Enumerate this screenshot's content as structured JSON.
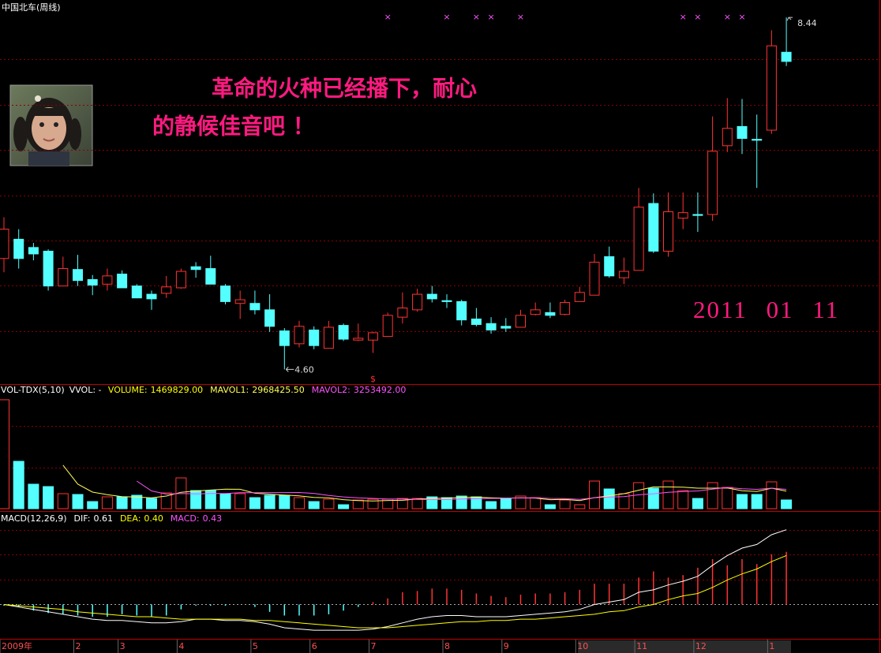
{
  "chart_data": [
    {
      "type": "candlestick",
      "title": "中国北车(周线)",
      "open": [
        5.81,
        6.02,
        5.93,
        5.89,
        5.51,
        5.69,
        5.58,
        5.53,
        5.64,
        5.51,
        5.42,
        5.43,
        5.49,
        5.72,
        5.7,
        5.51,
        5.32,
        5.32,
        5.25,
        5.02,
        4.88,
        5.03,
        4.83,
        5.08,
        4.92,
        4.92,
        4.96,
        5.17,
        5.25,
        5.42,
        5.35,
        5.34,
        5.15,
        5.1,
        5.07,
        5.06,
        5.2,
        5.22,
        5.2,
        5.34,
        5.41,
        5.83,
        5.6,
        5.68,
        6.41,
        5.89,
        6.25,
        6.29,
        6.29,
        7.04,
        7.25,
        7.11,
        7.21,
        8.06
      ],
      "high": [
        6.26,
        6.13,
        5.98,
        5.91,
        5.83,
        5.85,
        5.63,
        5.7,
        5.68,
        5.53,
        5.46,
        5.62,
        5.7,
        5.77,
        5.84,
        5.53,
        5.46,
        5.46,
        5.42,
        5.05,
        5.13,
        5.07,
        5.13,
        5.1,
        5.1,
        5.01,
        5.22,
        5.44,
        5.48,
        5.51,
        5.42,
        5.36,
        5.27,
        5.17,
        5.16,
        5.25,
        5.33,
        5.33,
        5.36,
        5.5,
        5.86,
        5.94,
        5.82,
        6.58,
        6.52,
        6.53,
        6.53,
        6.53,
        7.36,
        7.56,
        7.55,
        7.38,
        8.3,
        8.44
      ],
      "low": [
        5.66,
        5.7,
        5.79,
        5.46,
        5.51,
        5.51,
        5.41,
        5.46,
        5.49,
        5.38,
        5.25,
        5.38,
        5.48,
        5.6,
        5.53,
        5.31,
        5.15,
        5.2,
        5.01,
        4.6,
        4.84,
        4.82,
        4.83,
        4.91,
        4.91,
        4.78,
        4.96,
        5.1,
        5.23,
        5.33,
        5.27,
        5.08,
        5.07,
        4.99,
        5.01,
        5.06,
        5.19,
        5.16,
        5.19,
        5.34,
        5.41,
        5.6,
        5.53,
        5.68,
        5.87,
        5.83,
        6.13,
        6.1,
        6.22,
        6.97,
        6.95,
        6.58,
        7.17,
        7.91
      ],
      "close": [
        6.13,
        5.81,
        5.86,
        5.51,
        5.7,
        5.57,
        5.52,
        5.62,
        5.49,
        5.38,
        5.37,
        5.5,
        5.67,
        5.69,
        5.53,
        5.34,
        5.36,
        5.25,
        5.07,
        4.86,
        5.07,
        4.86,
        5.06,
        4.93,
        4.94,
        5.0,
        5.19,
        5.27,
        5.42,
        5.37,
        5.34,
        5.14,
        5.09,
        5.03,
        5.05,
        5.19,
        5.25,
        5.19,
        5.33,
        5.44,
        5.77,
        5.62,
        5.67,
        6.37,
        5.89,
        6.32,
        6.31,
        6.28,
        6.98,
        7.23,
        7.12,
        7.1,
        8.13,
        7.96
      ],
      "ylim": [
        4.44,
        8.63
      ],
      "up_color": "#ff3232",
      "down_color": "#54ffff",
      "grid": true,
      "max_marker": 8.44,
      "min_marker": {
        "value": 4.6,
        "label": "4.60"
      },
      "signal_labels": [
        null,
        null,
        null,
        null,
        null,
        null,
        null,
        null,
        null,
        null,
        null,
        null,
        null,
        null,
        null,
        null,
        null,
        null,
        null,
        null,
        null,
        null,
        null,
        null,
        null,
        null,
        "×",
        null,
        null,
        null,
        "×",
        null,
        "×",
        "×",
        null,
        "×",
        null,
        null,
        null,
        null,
        null,
        null,
        null,
        null,
        null,
        null,
        "×",
        "×",
        null,
        "×",
        "×",
        null,
        null,
        null
      ],
      "signal_color": "#ff54ff",
      "bottom_labels": [
        null,
        null,
        null,
        null,
        null,
        null,
        null,
        null,
        null,
        null,
        null,
        null,
        null,
        null,
        null,
        null,
        null,
        null,
        null,
        null,
        null,
        null,
        null,
        null,
        null,
        "$",
        null,
        null,
        null,
        null,
        null,
        null,
        null,
        null,
        null,
        null,
        null,
        null,
        null,
        null,
        null,
        null,
        null,
        null,
        null,
        null,
        null,
        null,
        null,
        null,
        null,
        null,
        null,
        null
      ],
      "annotations": [
        "革命的火种已经播下，耐心",
        "的静候佳音吧 ！",
        "2011 01 11"
      ],
      "annotation_color": "#ff1a80"
    },
    {
      "type": "bar",
      "title": "VOL-TDX(5,10)",
      "note": "VVOL: -",
      "ylim": [
        0,
        21000000
      ],
      "series": [
        {
          "name": "VOLUME:",
          "color": "#ffff00",
          "legend_value": {
            "value": 1469829,
            "label": "1469829.00"
          },
          "values": [
            18354000,
            7980000,
            4123000,
            3724000,
            2527000,
            2394000,
            1197000,
            1995000,
            1995000,
            2261000,
            1729000,
            2660000,
            5187000,
            3059000,
            3059000,
            2527000,
            2527000,
            1862000,
            2261000,
            2261000,
            1862000,
            1197000,
            1596000,
            665000,
            1463000,
            1596000,
            1596000,
            1729000,
            1729000,
            1995000,
            1862000,
            2128000,
            1995000,
            1197000,
            1729000,
            2128000,
            1862000,
            665000,
            1463000,
            665000,
            4655000,
            3325000,
            2527000,
            4389000,
            3458000,
            4655000,
            3059000,
            1729000,
            4389000,
            3591000,
            2394000,
            2394000,
            4522000,
            1469829
          ]
        },
        {
          "name": "MAVOL1:",
          "color": "#ffff54",
          "legend_value": {
            "value": 2968425.5,
            "label": "2968425.50"
          },
          "values": [
            null,
            null,
            null,
            null,
            7341600,
            4149600,
            2793000,
            2367400,
            2021600,
            1968400,
            1835400,
            2128000,
            2766400,
            2979200,
            3138800,
            3298400,
            3271800,
            2606800,
            2447200,
            2287600,
            2154600,
            1888600,
            1835400,
            1516200,
            1356600,
            1303400,
            1383200,
            1409800,
            1622600,
            1729000,
            1782200,
            1888600,
            1941800,
            1835400,
            1782200,
            1835400,
            1782200,
            1516200,
            1569400,
            1356600,
            1862000,
            2154600,
            2527000,
            3112200,
            3670800,
            3670800,
            3617600,
            3458000,
            3458000,
            3484600,
            3032400,
            2899400,
            3458000,
            2968425.5
          ]
        },
        {
          "name": "MAVOL2:",
          "color": "#ff54ff",
          "legend_value": {
            "value": 3253492,
            "label": "3253492.00"
          },
          "values": [
            null,
            null,
            null,
            null,
            null,
            null,
            null,
            null,
            null,
            4655000,
            2992500,
            2460500,
            2566900,
            2500400,
            2553600,
            2566900,
            2699900,
            2686600,
            2713200,
            2713200,
            2726500,
            2580200,
            2221100,
            1981700,
            1822100,
            1729000,
            1635900,
            1622600,
            1569400,
            1542800,
            1542800,
            1635900,
            1675800,
            1729000,
            1755600,
            1808800,
            1835400,
            1729000,
            1702400,
            1569400,
            1848700,
            1968400,
            2021600,
            2340800,
            2513700,
            2766400,
            2886100,
            2992500,
            3285100,
            3577700,
            3351600,
            3258500,
            3458000,
            3253492
          ]
        }
      ]
    },
    {
      "type": "line",
      "title": "MACD(12,26,9)",
      "ylim": [
        -0.28,
        0.75
      ],
      "categories": [
        "2009年",
        null,
        null,
        null,
        null,
        "2",
        null,
        null,
        "3",
        null,
        null,
        null,
        "4",
        null,
        null,
        null,
        null,
        "5",
        null,
        null,
        null,
        "6",
        null,
        null,
        null,
        "7",
        null,
        null,
        null,
        null,
        "8",
        null,
        null,
        null,
        "9",
        null,
        null,
        null,
        null,
        "10",
        null,
        null,
        null,
        "11",
        null,
        null,
        null,
        "12",
        null,
        null,
        null,
        null,
        "1",
        null
      ],
      "series": [
        {
          "name": "DIF:",
          "color": "#ffffff",
          "legend_value": 0.61,
          "values": [
            0,
            -0.02,
            -0.04,
            -0.06,
            -0.08,
            -0.1,
            -0.12,
            -0.13,
            -0.13,
            -0.14,
            -0.15,
            -0.15,
            -0.14,
            -0.12,
            -0.12,
            -0.13,
            -0.13,
            -0.14,
            -0.16,
            -0.19,
            -0.2,
            -0.21,
            -0.21,
            -0.21,
            -0.21,
            -0.2,
            -0.18,
            -0.15,
            -0.12,
            -0.1,
            -0.09,
            -0.09,
            -0.1,
            -0.1,
            -0.1,
            -0.09,
            -0.08,
            -0.07,
            -0.06,
            -0.04,
            0,
            0.02,
            0.04,
            0.1,
            0.12,
            0.16,
            0.19,
            0.23,
            0.32,
            0.4,
            0.46,
            0.49,
            0.57,
            0.61
          ]
        },
        {
          "name": "DEA:",
          "color": "#ffff00",
          "legend_value": {
            "value": 0.4,
            "label": "0.40"
          },
          "values": [
            0,
            -0.01,
            -0.02,
            -0.03,
            -0.04,
            -0.06,
            -0.07,
            -0.08,
            -0.09,
            -0.1,
            -0.1,
            -0.11,
            -0.12,
            -0.12,
            -0.12,
            -0.12,
            -0.12,
            -0.13,
            -0.13,
            -0.14,
            -0.15,
            -0.16,
            -0.17,
            -0.18,
            -0.19,
            -0.19,
            -0.19,
            -0.18,
            -0.17,
            -0.16,
            -0.15,
            -0.14,
            -0.14,
            -0.13,
            -0.13,
            -0.12,
            -0.12,
            -0.11,
            -0.1,
            -0.09,
            -0.08,
            -0.06,
            -0.05,
            -0.02,
            0,
            0.04,
            0.07,
            0.09,
            0.14,
            0.2,
            0.25,
            0.29,
            0.35,
            0.4
          ]
        },
        {
          "name": "MACD:",
          "color": "#ff54ff",
          "legend_value": 0.43,
          "style": "bars",
          "values": [
            -0.01,
            -0.02,
            -0.05,
            -0.07,
            -0.08,
            -0.09,
            -0.1,
            -0.1,
            -0.08,
            -0.09,
            -0.1,
            -0.09,
            -0.04,
            -0.01,
            -0.01,
            -0.01,
            0,
            -0.02,
            -0.06,
            -0.09,
            -0.09,
            -0.09,
            -0.08,
            -0.05,
            -0.02,
            0.02,
            0.05,
            0.1,
            0.11,
            0.13,
            0.13,
            0.12,
            0.09,
            0.07,
            0.06,
            0.08,
            0.09,
            0.09,
            0.1,
            0.12,
            0.17,
            0.17,
            0.17,
            0.22,
            0.27,
            0.22,
            0.24,
            0.3,
            0.37,
            0.32,
            0.37,
            0.33,
            0.41,
            0.43
          ]
        }
      ]
    }
  ]
}
